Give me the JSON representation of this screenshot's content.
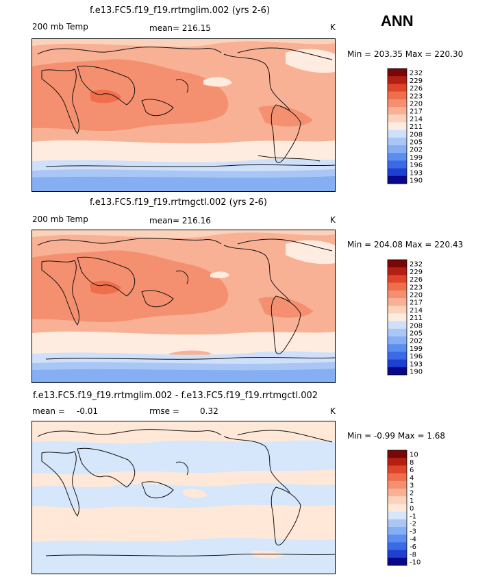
{
  "header": {
    "season": "ANN"
  },
  "palette": {
    "absolute": [
      "#08088c",
      "#1e3fd0",
      "#3a6ae6",
      "#5b8ef0",
      "#86aef2",
      "#aac6f5",
      "#cfe0fa",
      "#ffece0",
      "#fbd2bb",
      "#f8b195",
      "#f4906f",
      "#ef6e4c",
      "#de452a",
      "#b41f14",
      "#7a0707"
    ],
    "diff": [
      "#08088c",
      "#1e3fd0",
      "#3a6ae6",
      "#5b8ef0",
      "#86aef2",
      "#aac6f5",
      "#d6e6fb",
      "#ffe8d8",
      "#fbd2bb",
      "#f8b195",
      "#f4906f",
      "#ef6e4c",
      "#de452a",
      "#b41f14",
      "#7a0707"
    ],
    "coast": "#111111"
  },
  "chart_data": [
    {
      "type": "heatmap",
      "title": "f.e13.FC5.f19_f19.rrtmglim.002 (yrs 2-6)",
      "variable_label": "200 mb Temp",
      "mean_text": "mean= 216.15",
      "units": "K",
      "minmax_text": "Min = 203.35 Max = 220.30",
      "min": 203.35,
      "max": 220.3,
      "mean": 216.15,
      "legend_levels": [
        "232",
        "229",
        "226",
        "223",
        "220",
        "217",
        "214",
        "211",
        "208",
        "205",
        "202",
        "199",
        "196",
        "193",
        "190"
      ]
    },
    {
      "type": "heatmap",
      "title": "f.e13.FC5.f19_f19.rrtmgctl.002 (yrs 2-6)",
      "variable_label": "200 mb Temp",
      "mean_text": "mean= 216.16",
      "units": "K",
      "minmax_text": "Min = 204.08 Max = 220.43",
      "min": 204.08,
      "max": 220.43,
      "mean": 216.16,
      "legend_levels": [
        "232",
        "229",
        "226",
        "223",
        "220",
        "217",
        "214",
        "211",
        "208",
        "205",
        "202",
        "199",
        "196",
        "193",
        "190"
      ]
    },
    {
      "type": "heatmap",
      "title": "f.e13.FC5.f19_f19.rrtmglim.002 - f.e13.FC5.f19_f19.rrtmgctl.002",
      "mean_label": "mean =",
      "mean_value": "-0.01",
      "rmse_label": "rmse =",
      "rmse_value": "0.32",
      "units": "K",
      "minmax_text": "Min =  -0.99 Max =   1.68",
      "min": -0.99,
      "max": 1.68,
      "mean": -0.01,
      "rmse": 0.32,
      "legend_levels": [
        "10",
        "8",
        "6",
        "4",
        "3",
        "2",
        "1",
        "0",
        "-1",
        "-2",
        "-3",
        "-4",
        "-6",
        "-8",
        "-10"
      ]
    }
  ]
}
